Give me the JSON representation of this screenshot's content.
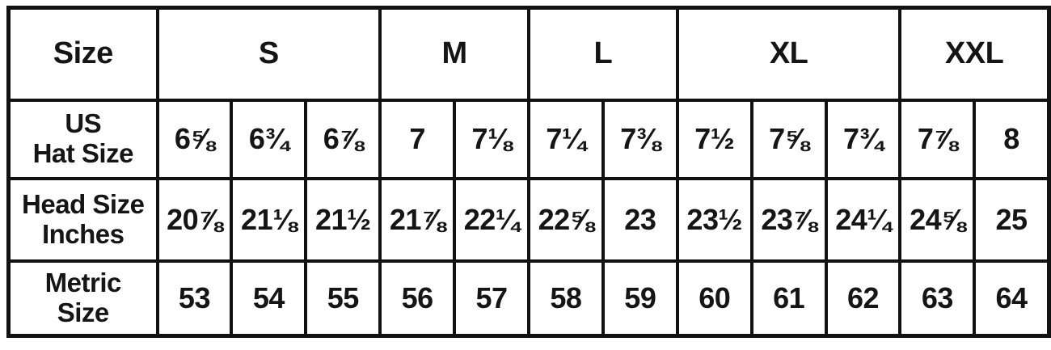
{
  "chart_data": {
    "type": "table",
    "header": {
      "size_label": "Size",
      "groups": [
        {
          "label": "S",
          "span": 3
        },
        {
          "label": "M",
          "span": 2
        },
        {
          "label": "L",
          "span": 2
        },
        {
          "label": "XL",
          "span": 3
        },
        {
          "label": "XXL",
          "span": 2
        }
      ]
    },
    "rows": [
      {
        "label_lines": [
          "US",
          "Hat Size"
        ],
        "values": [
          "6⅝",
          "6¾",
          "6⅞",
          "7",
          "7⅛",
          "7¼",
          "7⅜",
          "7½",
          "7⅝",
          "7¾",
          "7⅞",
          "8"
        ]
      },
      {
        "label_lines": [
          "Head Size",
          "Inches"
        ],
        "values": [
          "20⅞",
          "21⅛",
          "21½",
          "21⅞",
          "22¼",
          "22⅝",
          "23",
          "23½",
          "23⅞",
          "24¼",
          "24⅝",
          "25"
        ]
      },
      {
        "label_lines": [
          "Metric",
          "Size"
        ],
        "values": [
          "53",
          "54",
          "55",
          "56",
          "57",
          "58",
          "59",
          "60",
          "61",
          "62",
          "63",
          "64"
        ]
      }
    ],
    "layout": {
      "grid": true,
      "columns_total": 13,
      "data_columns": 12
    },
    "colors": {
      "text": "#151515",
      "border": "#111111",
      "background": "#ffffff"
    }
  }
}
